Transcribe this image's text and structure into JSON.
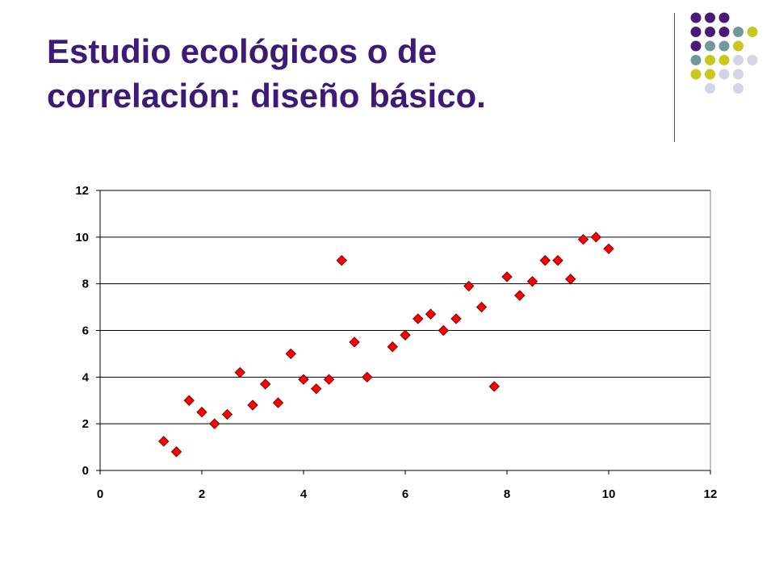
{
  "slide": {
    "title_line1": "Estudio ecológicos o de",
    "title_line2": "correlación: diseño básico."
  },
  "colors": {
    "title": "#3d1a78",
    "marker_fill": "#ff0000",
    "marker_stroke": "#7a0000",
    "gridline": "#000000",
    "deco_purple": "#4b1a78",
    "deco_teal": "#6f9a9a",
    "deco_olive": "#c8c81e",
    "deco_lavender": "#d4d4e8"
  },
  "decoration": {
    "dot_grid": [
      [
        "purple",
        "purple",
        "purple",
        "none"
      ],
      [
        "purple",
        "purple",
        "purple",
        "teal",
        "olive"
      ],
      [
        "purple",
        "teal",
        "teal",
        "olive"
      ],
      [
        "teal",
        "olive",
        "olive",
        "lavender",
        "lavender"
      ],
      [
        "olive",
        "olive",
        "lavender",
        "lavender"
      ],
      [
        "none",
        "lavender",
        "none",
        "lavender"
      ]
    ]
  },
  "chart_data": {
    "type": "scatter",
    "title": "",
    "xlabel": "",
    "ylabel": "",
    "xlim": [
      0,
      12
    ],
    "ylim": [
      0,
      12
    ],
    "x_ticks": [
      0,
      2,
      4,
      6,
      8,
      10,
      12
    ],
    "y_ticks": [
      0,
      2,
      4,
      6,
      8,
      10,
      12
    ],
    "grid": "horizontal",
    "marker": "diamond",
    "points": [
      [
        1.25,
        1.25
      ],
      [
        1.5,
        0.8
      ],
      [
        1.75,
        3.0
      ],
      [
        2.0,
        2.5
      ],
      [
        2.25,
        2.0
      ],
      [
        2.5,
        2.4
      ],
      [
        2.75,
        4.2
      ],
      [
        3.0,
        2.8
      ],
      [
        3.25,
        3.7
      ],
      [
        3.5,
        2.9
      ],
      [
        3.75,
        5.0
      ],
      [
        4.0,
        3.9
      ],
      [
        4.25,
        3.5
      ],
      [
        4.5,
        3.9
      ],
      [
        4.75,
        9.0
      ],
      [
        5.0,
        5.5
      ],
      [
        5.25,
        4.0
      ],
      [
        5.75,
        5.3
      ],
      [
        6.0,
        5.8
      ],
      [
        6.25,
        6.5
      ],
      [
        6.5,
        6.7
      ],
      [
        6.75,
        6.0
      ],
      [
        7.0,
        6.5
      ],
      [
        7.25,
        7.9
      ],
      [
        7.5,
        7.0
      ],
      [
        7.75,
        3.6
      ],
      [
        8.0,
        8.3
      ],
      [
        8.25,
        7.5
      ],
      [
        8.5,
        8.1
      ],
      [
        8.75,
        9.0
      ],
      [
        9.0,
        9.0
      ],
      [
        9.25,
        8.2
      ],
      [
        9.5,
        9.9
      ],
      [
        9.75,
        10.0
      ],
      [
        10.0,
        9.5
      ]
    ]
  }
}
